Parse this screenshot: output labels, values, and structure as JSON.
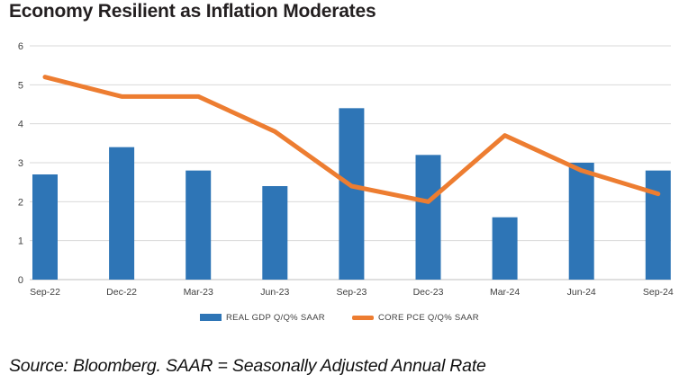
{
  "title": "Economy Resilient as Inflation Moderates",
  "source_note": "Source: Bloomberg. SAAR = Seasonally Adjusted Annual Rate",
  "colors": {
    "bar": "#2E75B6",
    "line": "#ED7D31",
    "gridline": "#D9D9D9",
    "axis_line": "#BFBFBF",
    "axis_text": "#404040",
    "title_text": "#231F20"
  },
  "chart_data": {
    "type": "bar",
    "subtype": "bar-line-combo",
    "title": "Economy Resilient as Inflation Moderates",
    "categories": [
      "Sep-22",
      "Dec-22",
      "Mar-23",
      "Jun-23",
      "Sep-23",
      "Dec-23",
      "Mar-24",
      "Jun-24",
      "Sep-24"
    ],
    "series": [
      {
        "name": "REAL GDP Q/Q% SAAR",
        "type": "bar",
        "color": "#2E75B6",
        "values": [
          2.7,
          3.4,
          2.8,
          2.4,
          4.4,
          3.2,
          1.6,
          3.0,
          2.8
        ]
      },
      {
        "name": "CORE PCE Q/Q% SAAR",
        "type": "line",
        "color": "#ED7D31",
        "values": [
          5.2,
          4.7,
          4.7,
          3.8,
          2.4,
          2.0,
          3.7,
          2.8,
          2.2
        ]
      }
    ],
    "xlabel": "",
    "ylabel": "",
    "ylim": [
      0,
      6
    ],
    "yticks": [
      0,
      1,
      2,
      3,
      4,
      5,
      6
    ],
    "grid": "horizontal",
    "legend_position": "bottom"
  }
}
